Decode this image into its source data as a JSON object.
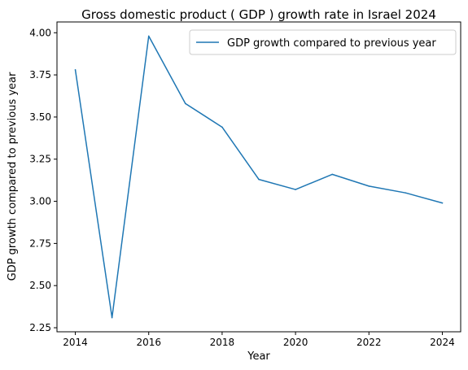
{
  "chart_data": {
    "type": "line",
    "title": "Gross domestic product ( GDP ) growth rate in Israel 2024",
    "xlabel": "Year",
    "ylabel": "GDP growth compared to previous year",
    "x": [
      2014,
      2015,
      2016,
      2017,
      2018,
      2019,
      2020,
      2021,
      2022,
      2023,
      2024
    ],
    "series": [
      {
        "name": "GDP growth compared to previous year",
        "values": [
          3.78,
          2.31,
          3.98,
          3.58,
          3.44,
          3.13,
          3.07,
          3.16,
          3.09,
          3.05,
          2.99
        ],
        "color": "#1f77b4"
      }
    ],
    "xticks": [
      "2014",
      "2016",
      "2018",
      "2020",
      "2022",
      "2024"
    ],
    "yticks": [
      "2.25",
      "2.50",
      "2.75",
      "3.00",
      "3.25",
      "3.50",
      "3.75",
      "4.00"
    ],
    "xlim": [
      2013.5,
      2024.5
    ],
    "ylim": [
      2.226,
      4.064
    ],
    "grid": false,
    "legend_position": "top-right"
  }
}
